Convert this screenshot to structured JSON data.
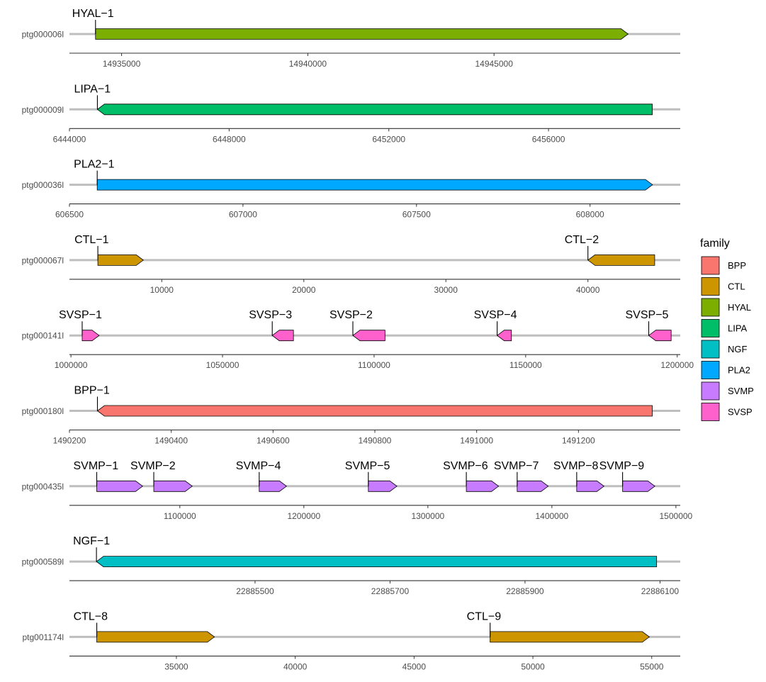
{
  "chart_data": {
    "type": "gene-arrow-map",
    "legend": {
      "title": "family",
      "position": "right",
      "entries": [
        {
          "name": "BPP",
          "color": "#F8766D"
        },
        {
          "name": "CTL",
          "color": "#CD9600"
        },
        {
          "name": "HYAL",
          "color": "#7CAE00"
        },
        {
          "name": "LIPA",
          "color": "#00BE67"
        },
        {
          "name": "NGF",
          "color": "#00BFC4"
        },
        {
          "name": "PLA2",
          "color": "#00A9FF"
        },
        {
          "name": "SVMP",
          "color": "#C77CFF"
        },
        {
          "name": "SVSP",
          "color": "#FF61CC"
        }
      ]
    },
    "molecule_line_color": "#bebebe",
    "panels": [
      {
        "molecule": "ptg000006l",
        "xlim": [
          14933600,
          14950000
        ],
        "ticks": [
          14935000,
          14940000,
          14945000
        ],
        "tick_labels": [
          "14935000",
          "14940000",
          "14945000"
        ],
        "genes": [
          {
            "label": "HYAL−1",
            "family": "HYAL",
            "start": 14934300,
            "end": 14948600,
            "strand": "+"
          }
        ]
      },
      {
        "molecule": "ptg000009l",
        "xlim": [
          6444000,
          6459300
        ],
        "ticks": [
          6444000,
          6448000,
          6452000,
          6456000
        ],
        "tick_labels": [
          "6444000",
          "6448000",
          "6452000",
          "6456000"
        ],
        "genes": [
          {
            "label": "LIPA−1",
            "family": "LIPA",
            "start": 6444700,
            "end": 6458600,
            "strand": "-"
          }
        ]
      },
      {
        "molecule": "ptg000036l",
        "xlim": [
          606500,
          608260
        ],
        "ticks": [
          606500,
          607000,
          607500,
          608000
        ],
        "tick_labels": [
          "606500",
          "607000",
          "607500",
          "608000"
        ],
        "genes": [
          {
            "label": "PLA2−1",
            "family": "PLA2",
            "start": 606580,
            "end": 608180,
            "strand": "+"
          }
        ]
      },
      {
        "molecule": "ptg000067l",
        "xlim": [
          3500,
          46500
        ],
        "ticks": [
          10000,
          20000,
          30000,
          40000
        ],
        "tick_labels": [
          "10000",
          "20000",
          "30000",
          "40000"
        ],
        "genes": [
          {
            "label": "CTL−1",
            "family": "CTL",
            "start": 5500,
            "end": 8700,
            "strand": "+"
          },
          {
            "label": "CTL−2",
            "family": "CTL",
            "start": 40000,
            "end": 44700,
            "strand": "-"
          }
        ]
      },
      {
        "molecule": "ptg000141l",
        "xlim": [
          999500,
          1201000
        ],
        "ticks": [
          1000000,
          1050000,
          1100000,
          1150000,
          1200000
        ],
        "tick_labels": [
          "1000000",
          "1050000",
          "1100000",
          "1150000",
          "1200000"
        ],
        "genes": [
          {
            "label": "SVSP−1",
            "family": "SVSP",
            "start": 1003700,
            "end": 1009300,
            "strand": "+"
          },
          {
            "label": "SVSP−3",
            "family": "SVSP",
            "start": 1066400,
            "end": 1073400,
            "strand": "-"
          },
          {
            "label": "SVSP−2",
            "family": "SVSP",
            "start": 1093000,
            "end": 1103600,
            "strand": "-"
          },
          {
            "label": "SVSP−4",
            "family": "SVSP",
            "start": 1140600,
            "end": 1145300,
            "strand": "-"
          },
          {
            "label": "SVSP−5",
            "family": "SVSP",
            "start": 1190600,
            "end": 1198000,
            "strand": "-"
          }
        ]
      },
      {
        "molecule": "ptg000180l",
        "xlim": [
          1490200,
          1491400
        ],
        "ticks": [
          1490200,
          1490400,
          1490600,
          1490800,
          1491000,
          1491200
        ],
        "tick_labels": [
          "1490200",
          "1490400",
          "1490600",
          "1490800",
          "1491000",
          "1491200"
        ],
        "genes": [
          {
            "label": "BPP−1",
            "family": "BPP",
            "start": 1490255,
            "end": 1491345,
            "strand": "-"
          }
        ]
      },
      {
        "molecule": "ptg000435l",
        "xlim": [
          1011000,
          1503500
        ],
        "ticks": [
          1100000,
          1200000,
          1300000,
          1400000,
          1500000
        ],
        "tick_labels": [
          "1100000",
          "1200000",
          "1300000",
          "1400000",
          "1500000"
        ],
        "genes": [
          {
            "label": "SVMP−1",
            "family": "SVMP",
            "start": 1033000,
            "end": 1070000,
            "strand": "+"
          },
          {
            "label": "SVMP−2",
            "family": "SVMP",
            "start": 1079000,
            "end": 1110000,
            "strand": "+"
          },
          {
            "label": "SVMP−4",
            "family": "SVMP",
            "start": 1164000,
            "end": 1186000,
            "strand": "+"
          },
          {
            "label": "SVMP−5",
            "family": "SVMP",
            "start": 1252000,
            "end": 1275000,
            "strand": "+"
          },
          {
            "label": "SVMP−6",
            "family": "SVMP",
            "start": 1331000,
            "end": 1357000,
            "strand": "+"
          },
          {
            "label": "SVMP−7",
            "family": "SVMP",
            "start": 1372000,
            "end": 1397000,
            "strand": "+"
          },
          {
            "label": "SVMP−8",
            "family": "SVMP",
            "start": 1420000,
            "end": 1442000,
            "strand": "+"
          },
          {
            "label": "SVMP−9",
            "family": "SVMP",
            "start": 1457000,
            "end": 1483000,
            "strand": "+"
          }
        ]
      },
      {
        "molecule": "ptg000589l",
        "xlim": [
          22885225,
          22886130
        ],
        "ticks": [
          22885500,
          22885700,
          22885900,
          22886100
        ],
        "tick_labels": [
          "22885500",
          "22885700",
          "22885900",
          "22886100"
        ],
        "genes": [
          {
            "label": "NGF−1",
            "family": "NGF",
            "start": 22885265,
            "end": 22886095,
            "strand": "-"
          }
        ]
      },
      {
        "molecule": "ptg001174l",
        "xlim": [
          30500,
          56200
        ],
        "ticks": [
          35000,
          40000,
          45000,
          50000,
          55000
        ],
        "tick_labels": [
          "35000",
          "40000",
          "45000",
          "50000",
          "55000"
        ],
        "genes": [
          {
            "label": "CTL−8",
            "family": "CTL",
            "start": 31650,
            "end": 36600,
            "strand": "+"
          },
          {
            "label": "CTL−9",
            "family": "CTL",
            "start": 48200,
            "end": 54900,
            "strand": "+"
          }
        ]
      }
    ]
  }
}
